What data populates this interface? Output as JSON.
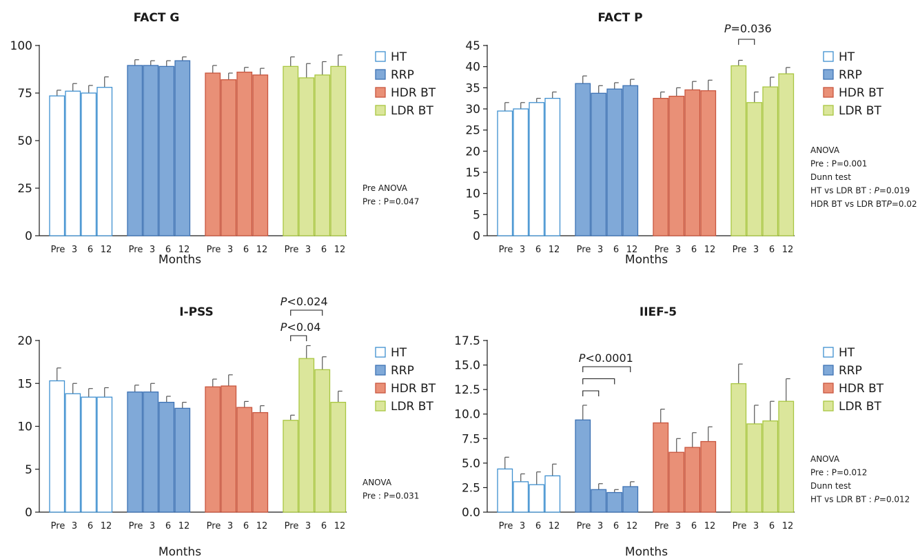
{
  "colors": {
    "HT": {
      "fill": "#ffffff",
      "stroke": "#3d8fcf"
    },
    "RRP": {
      "fill": "#80a9d8",
      "stroke": "#3d72b4"
    },
    "HDR BT": {
      "fill": "#e99077",
      "stroke": "#c8553e"
    },
    "LDR BT": {
      "fill": "#dbe69b",
      "stroke": "#a8c640"
    },
    "axis": "#1a1a1a",
    "error_bar": "#555555"
  },
  "chart_data": [
    {
      "type": "bar",
      "title": "FACT G",
      "xlabel": "Months",
      "ylabel": "",
      "ylim": [
        0,
        100
      ],
      "yticks": [
        "0",
        "25",
        "50",
        "75",
        "100"
      ],
      "tick_values": [
        0,
        25,
        50,
        75,
        100
      ],
      "categories": [
        "Pre",
        "3",
        "6",
        "12"
      ],
      "grid": false,
      "legend_position": "right",
      "series": [
        {
          "name": "HT",
          "values": [
            73.5,
            76,
            75,
            78
          ],
          "errors": [
            3,
            4,
            4,
            5.5
          ]
        },
        {
          "name": "RRP",
          "values": [
            89.5,
            89.5,
            89,
            92
          ],
          "errors": [
            3,
            2.5,
            3,
            2
          ]
        },
        {
          "name": "HDR BT",
          "values": [
            85.5,
            82,
            86,
            84.5
          ],
          "errors": [
            4,
            3.5,
            2.5,
            3.5
          ]
        },
        {
          "name": "LDR BT",
          "values": [
            89,
            83,
            84.5,
            89
          ],
          "errors": [
            5,
            7.5,
            7,
            6
          ]
        }
      ],
      "annotations": [
        "Pre ANOVA",
        "Pre : P=0.047"
      ],
      "significance": []
    },
    {
      "type": "bar",
      "title": "FACT P",
      "xlabel": "Months",
      "ylabel": "",
      "ylim": [
        0,
        45
      ],
      "yticks": [
        "0",
        "5",
        "10",
        "15",
        "20",
        "25",
        "30",
        "35",
        "40",
        "45"
      ],
      "tick_values": [
        0,
        5,
        10,
        15,
        20,
        25,
        30,
        35,
        40,
        45
      ],
      "categories": [
        "Pre",
        "3",
        "6",
        "12"
      ],
      "grid": false,
      "legend_position": "right",
      "series": [
        {
          "name": "HT",
          "values": [
            29.5,
            30,
            31.5,
            32.5
          ],
          "errors": [
            2,
            1.5,
            1,
            1.5
          ]
        },
        {
          "name": "RRP",
          "values": [
            36,
            33.7,
            34.7,
            35.5
          ],
          "errors": [
            1.8,
            1.8,
            1.5,
            1.5
          ]
        },
        {
          "name": "HDR BT",
          "values": [
            32.5,
            33,
            34.5,
            34.3
          ],
          "errors": [
            1.5,
            2,
            2,
            2.5
          ]
        },
        {
          "name": "LDR BT",
          "values": [
            40.2,
            31.5,
            35.2,
            38.3
          ],
          "errors": [
            1.3,
            2.5,
            2.3,
            1.5
          ]
        }
      ],
      "annotations": [
        "ANOVA",
        "Pre : P=0.001",
        "Dunn test",
        "HT vs LDR BT : P=0.019",
        "HDR BT vs LDR BTP=0.02"
      ],
      "significance": [
        {
          "label": "P=0.036",
          "group": 3,
          "from": 0,
          "to": 1,
          "level": 0
        }
      ]
    },
    {
      "type": "bar",
      "title": "I-PSS",
      "xlabel": "Months",
      "ylabel": "",
      "ylim": [
        0,
        20
      ],
      "yticks": [
        "0",
        "5",
        "10",
        "15",
        "20"
      ],
      "tick_values": [
        0,
        5,
        10,
        15,
        20
      ],
      "categories": [
        "Pre",
        "3",
        "6",
        "12"
      ],
      "grid": false,
      "legend_position": "right",
      "series": [
        {
          "name": "HT",
          "values": [
            15.3,
            13.8,
            13.4,
            13.4
          ],
          "errors": [
            1.5,
            1.2,
            1,
            1.1
          ]
        },
        {
          "name": "RRP",
          "values": [
            14,
            14,
            12.8,
            12.1
          ],
          "errors": [
            0.8,
            1,
            0.7,
            0.7
          ]
        },
        {
          "name": "HDR BT",
          "values": [
            14.6,
            14.7,
            12.2,
            11.6
          ],
          "errors": [
            0.9,
            1.3,
            0.7,
            0.8
          ]
        },
        {
          "name": "LDR BT",
          "values": [
            10.7,
            17.9,
            16.6,
            12.8
          ],
          "errors": [
            0.6,
            1.5,
            1.5,
            1.3
          ]
        }
      ],
      "annotations": [
        "ANOVA",
        "Pre : P=0.031"
      ],
      "significance": [
        {
          "label": "P<0.04",
          "group": 3,
          "from": 0,
          "to": 1,
          "level": 0
        },
        {
          "label": "P<0.024",
          "group": 3,
          "from": 0,
          "to": 2,
          "level": 1
        }
      ]
    },
    {
      "type": "bar",
      "title": "IIEF-5",
      "xlabel": "Months",
      "ylabel": "",
      "ylim": [
        0,
        17.5
      ],
      "yticks": [
        "0.0",
        "2.5",
        "5.0",
        "7.5",
        "10.0",
        "12.5",
        "15.0",
        "17.5"
      ],
      "tick_values": [
        0,
        2.5,
        5,
        7.5,
        10,
        12.5,
        15,
        17.5
      ],
      "categories": [
        "Pre",
        "3",
        "6",
        "12"
      ],
      "grid": false,
      "legend_position": "right",
      "series": [
        {
          "name": "HT",
          "values": [
            4.4,
            3.1,
            2.8,
            3.7
          ],
          "errors": [
            1.2,
            0.8,
            1.3,
            1.2
          ]
        },
        {
          "name": "RRP",
          "values": [
            9.4,
            2.3,
            2,
            2.6
          ],
          "errors": [
            1.5,
            0.6,
            0.3,
            0.5
          ]
        },
        {
          "name": "HDR BT",
          "values": [
            9.1,
            6.1,
            6.6,
            7.2
          ],
          "errors": [
            1.4,
            1.4,
            1.5,
            1.5
          ]
        },
        {
          "name": "LDR BT",
          "values": [
            13.1,
            9,
            9.3,
            11.3
          ],
          "errors": [
            2,
            1.9,
            2,
            2.3
          ]
        }
      ],
      "annotations": [
        "ANOVA",
        "Pre : P=0.012",
        "Dunn test",
        "HT vs LDR BT : P=0.012"
      ],
      "significance": [
        {
          "label": "P<0.0001",
          "group": 1,
          "from": 0,
          "to": 3,
          "level": 2
        },
        {
          "label": "",
          "group": 1,
          "from": 0,
          "to": 2,
          "level": 1
        },
        {
          "label": "",
          "group": 1,
          "from": 0,
          "to": 1,
          "level": 0
        }
      ]
    }
  ]
}
